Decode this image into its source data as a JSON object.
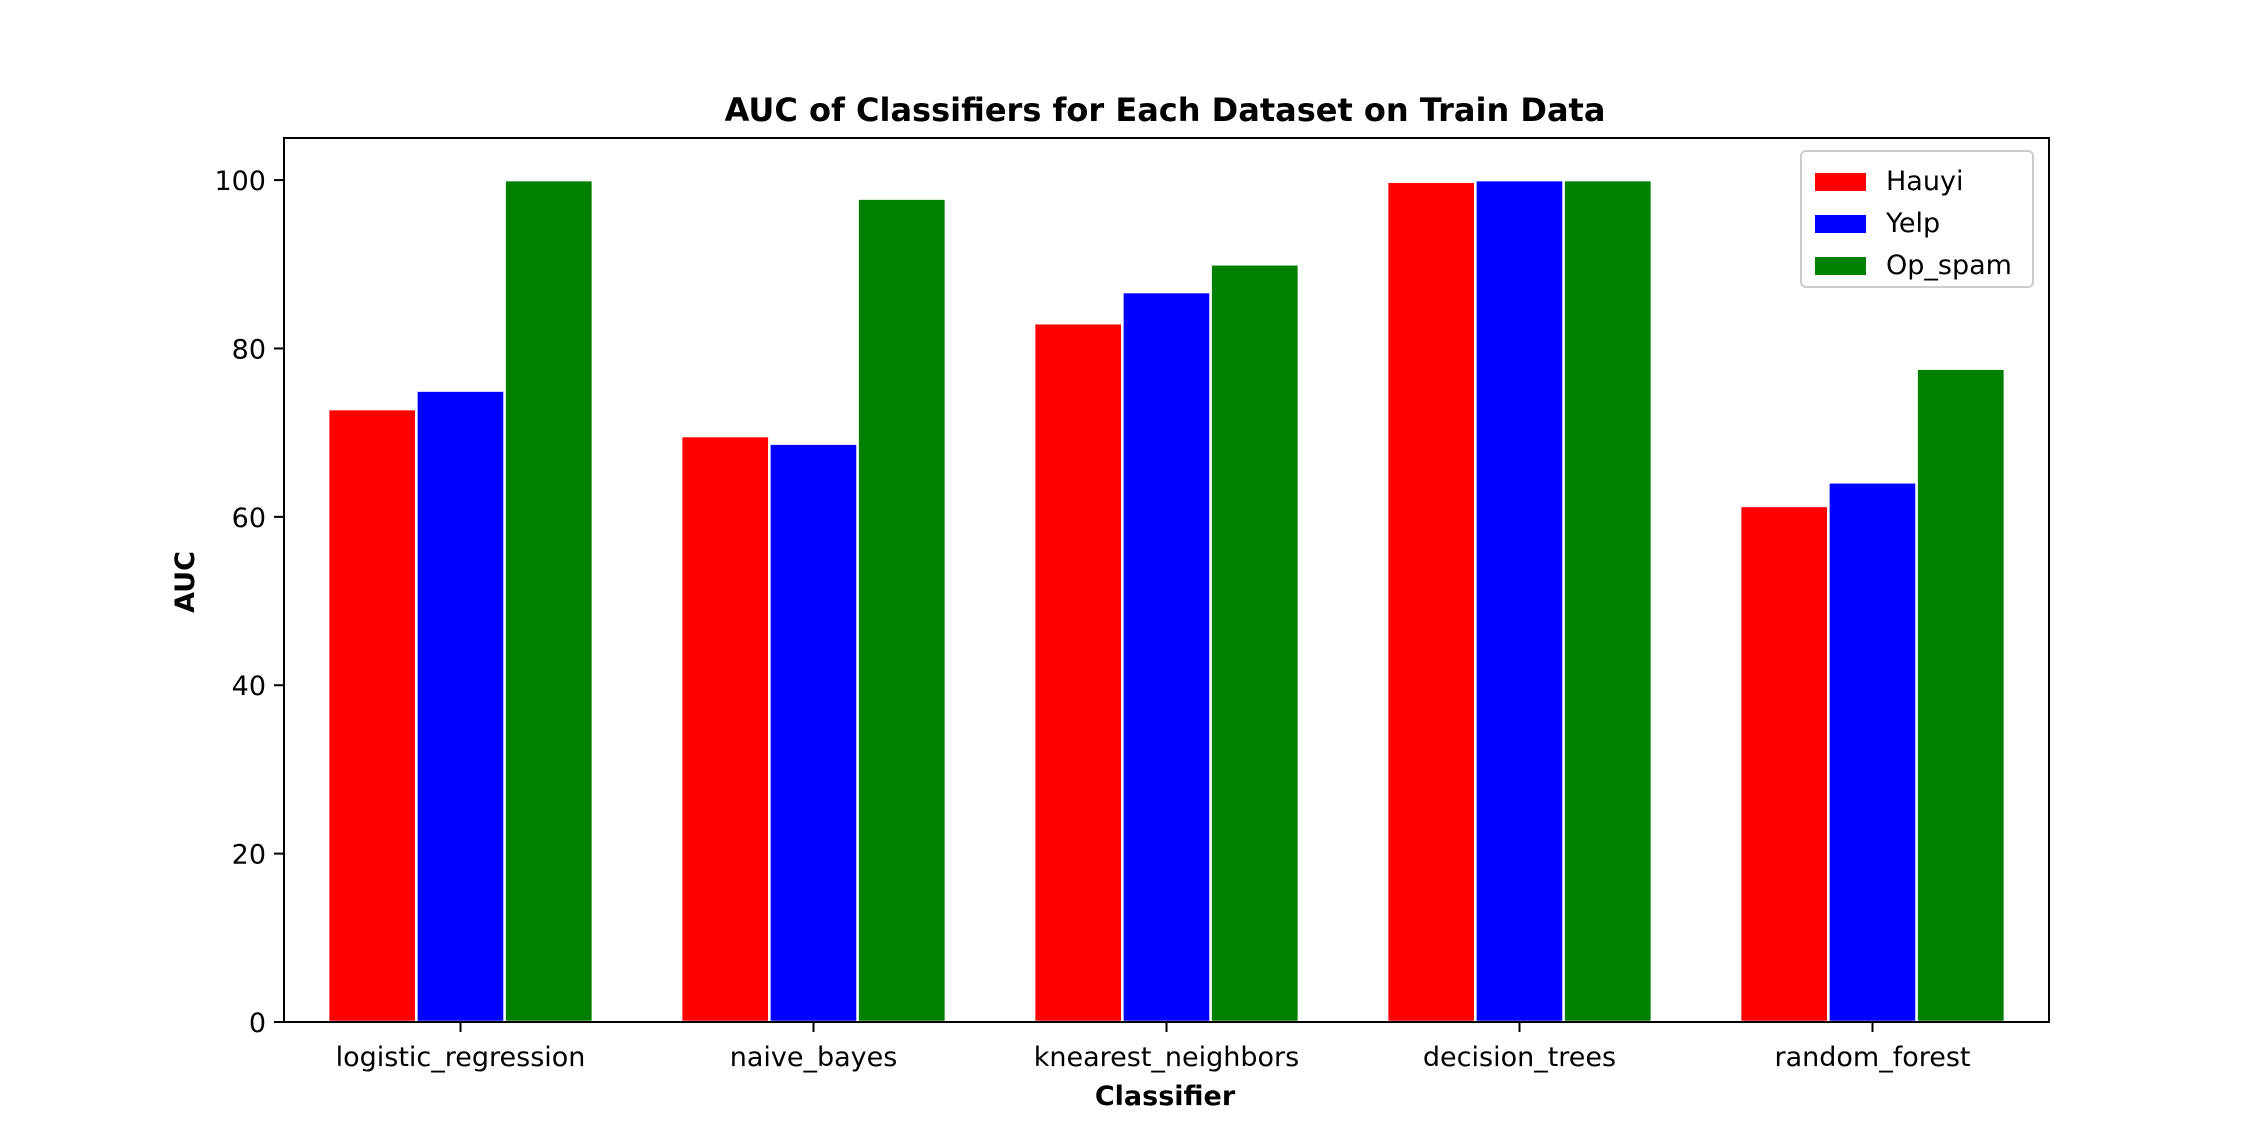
{
  "chart_data": {
    "type": "bar",
    "title": "AUC of Classifiers for Each Dataset on Train Data",
    "xlabel": "Classifier",
    "ylabel": "AUC",
    "categories": [
      "logistic_regression",
      "naive_bayes",
      "knearest_neighbors",
      "decision_trees",
      "random_forest"
    ],
    "series": [
      {
        "name": "Hauyi",
        "color": "#ff0000",
        "values": [
          72.8,
          69.6,
          83.0,
          99.8,
          61.3
        ]
      },
      {
        "name": "Yelp",
        "color": "#0000ff",
        "values": [
          75.0,
          68.7,
          86.7,
          100.0,
          64.1
        ]
      },
      {
        "name": "Op_spam",
        "color": "#008000",
        "values": [
          100.0,
          97.8,
          90.0,
          100.0,
          77.6
        ]
      }
    ],
    "ylim": [
      0,
      105
    ],
    "yticks": [
      0,
      20,
      40,
      60,
      80,
      100
    ],
    "grid": false,
    "legend_position": "top-right"
  }
}
